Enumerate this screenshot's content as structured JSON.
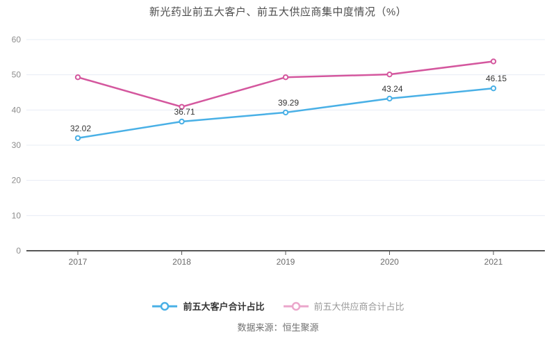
{
  "title": "新光药业前五大客户、前五大供应商集中度情况（%）",
  "source": "数据来源：恒生聚源",
  "colors": {
    "customer_line": "#49b0e6",
    "supplier_line": "#d4579e",
    "legend_supplier_marker": "#eba6cb",
    "grid": "#e7ecf4",
    "axis": "#555555",
    "ytick_label": "#8c8c8c",
    "xtick_label": "#6b6b6b",
    "data_label": "#333333",
    "background": "#ffffff"
  },
  "chart_data": {
    "type": "line",
    "categories": [
      "2017",
      "2018",
      "2019",
      "2020",
      "2021"
    ],
    "series": [
      {
        "name": "前五大客户合计占比",
        "values": [
          32.02,
          36.71,
          39.29,
          43.24,
          46.15
        ],
        "color": "#49b0e6",
        "labels_shown": true
      },
      {
        "name": "前五大供应商合计占比",
        "values": [
          49.3,
          40.9,
          49.3,
          50.1,
          53.8
        ],
        "color": "#d4579e",
        "labels_shown": false
      }
    ],
    "title": "新光药业前五大客户、前五大供应商集中度情况（%）",
    "xlabel": "",
    "ylabel": "",
    "ylim": [
      0,
      60
    ],
    "ytick_step": 10,
    "yticks": [
      0,
      10,
      20,
      30,
      40,
      50,
      60
    ],
    "grid": true,
    "legend_position": "bottom"
  },
  "legend": {
    "items": [
      {
        "label": "前五大客户合计占比",
        "marker_color": "#49b0e6",
        "text_color": "#333333"
      },
      {
        "label": "前五大供应商合计占比",
        "marker_color": "#eba6cb",
        "text_color": "#999999"
      }
    ]
  }
}
